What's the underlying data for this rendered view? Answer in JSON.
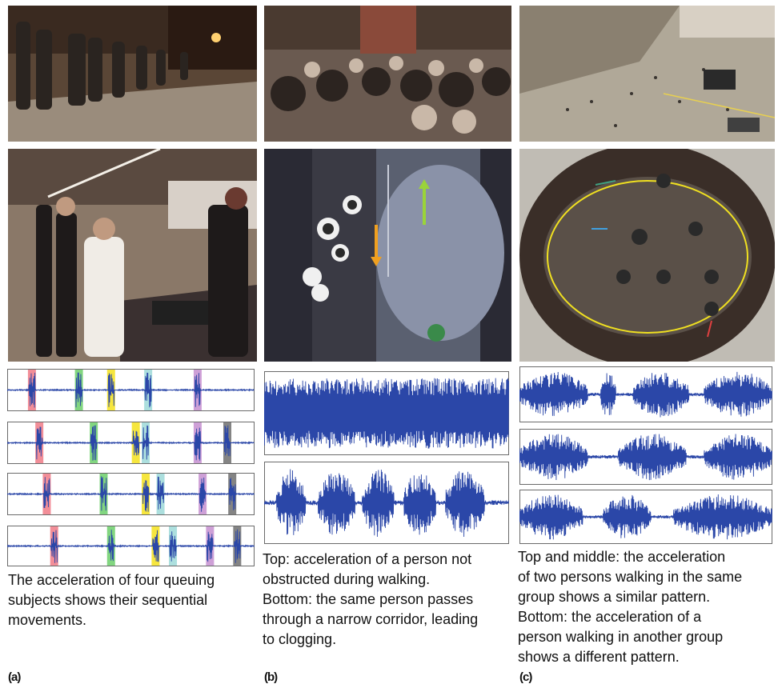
{
  "panels": {
    "a": {
      "label": "(a)",
      "caption": [
        "The acceleration of four queuing",
        "subjects shows their sequential",
        "movements."
      ]
    },
    "b": {
      "label": "(b)",
      "caption": [
        "Top: acceleration of a person not",
        "obstructed during walking.",
        "Bottom: the same person passes",
        "through a narrow corridor, leading",
        "to clogging."
      ]
    },
    "c": {
      "label": "(c)",
      "caption": [
        "Top and middle: the acceleration",
        "of two persons walking in the same",
        "group shows a similar pattern.",
        "Bottom: the acceleration of a",
        "person walking in another group",
        "shows a different pattern."
      ]
    }
  },
  "photos": [
    {
      "name": "night-queue-street-photo",
      "colors": [
        "#3a2a20",
        "#7a6a58",
        "#b8aa98"
      ]
    },
    {
      "name": "dense-crowd-street-photo",
      "colors": [
        "#2c2420",
        "#6a5a50",
        "#c9b8a8"
      ]
    },
    {
      "name": "plaza-aerial-photo",
      "colors": [
        "#8a8278",
        "#b0a898",
        "#d8d0c4"
      ]
    },
    {
      "name": "cafeteria-queue-photo",
      "colors": [
        "#3a3030",
        "#8a7868",
        "#d8d0c8"
      ]
    },
    {
      "name": "corridor-overhead-photo",
      "colors": [
        "#2a2a34",
        "#5a6070",
        "#c8ccd8"
      ]
    },
    {
      "name": "circular-walk-overhead-photo",
      "colors": [
        "#2a2a2a",
        "#5a5048",
        "#c0bcb4"
      ]
    }
  ],
  "plot_colors": {
    "signal": "#2b47a8",
    "marker_red": "#f07a86",
    "marker_green": "#6ccf6a",
    "marker_yellow": "#f5e21c",
    "marker_cyan": "#9ed9d8",
    "marker_purple": "#c58fd0",
    "marker_gray": "#6e6e6e"
  },
  "signal_plots": {
    "a": [
      {
        "markers": [
          {
            "pos": 0.1,
            "color": "marker_red"
          },
          {
            "pos": 0.29,
            "color": "marker_green"
          },
          {
            "pos": 0.42,
            "color": "marker_yellow"
          },
          {
            "pos": 0.57,
            "color": "marker_cyan"
          },
          {
            "pos": 0.77,
            "color": "marker_purple"
          }
        ]
      },
      {
        "markers": [
          {
            "pos": 0.13,
            "color": "marker_red"
          },
          {
            "pos": 0.35,
            "color": "marker_green"
          },
          {
            "pos": 0.52,
            "color": "marker_yellow"
          },
          {
            "pos": 0.56,
            "color": "marker_cyan"
          },
          {
            "pos": 0.77,
            "color": "marker_purple"
          },
          {
            "pos": 0.89,
            "color": "marker_gray"
          }
        ]
      },
      {
        "markers": [
          {
            "pos": 0.16,
            "color": "marker_red"
          },
          {
            "pos": 0.39,
            "color": "marker_green"
          },
          {
            "pos": 0.56,
            "color": "marker_yellow"
          },
          {
            "pos": 0.62,
            "color": "marker_cyan"
          },
          {
            "pos": 0.79,
            "color": "marker_purple"
          },
          {
            "pos": 0.91,
            "color": "marker_gray"
          }
        ]
      },
      {
        "markers": [
          {
            "pos": 0.19,
            "color": "marker_red"
          },
          {
            "pos": 0.42,
            "color": "marker_green"
          },
          {
            "pos": 0.6,
            "color": "marker_yellow"
          },
          {
            "pos": 0.67,
            "color": "marker_cyan"
          },
          {
            "pos": 0.82,
            "color": "marker_purple"
          },
          {
            "pos": 0.93,
            "color": "marker_gray"
          }
        ]
      }
    ],
    "b": [
      {
        "pattern": "continuous"
      },
      {
        "pattern": "bursts",
        "bursts": [
          [
            0.05,
            0.17
          ],
          [
            0.22,
            0.37
          ],
          [
            0.4,
            0.53
          ],
          [
            0.57,
            0.7
          ],
          [
            0.74,
            0.9
          ]
        ]
      }
    ],
    "c": [
      {
        "pattern": "bursts",
        "bursts": [
          [
            0.0,
            0.27
          ],
          [
            0.32,
            0.38
          ],
          [
            0.45,
            0.67
          ],
          [
            0.73,
            1.0
          ]
        ]
      },
      {
        "pattern": "bursts",
        "bursts": [
          [
            0.0,
            0.27
          ],
          [
            0.39,
            0.66
          ],
          [
            0.73,
            1.0
          ]
        ]
      },
      {
        "pattern": "bursts",
        "bursts": [
          [
            0.0,
            0.25
          ],
          [
            0.33,
            0.52
          ],
          [
            0.61,
            1.0
          ]
        ]
      }
    ]
  }
}
